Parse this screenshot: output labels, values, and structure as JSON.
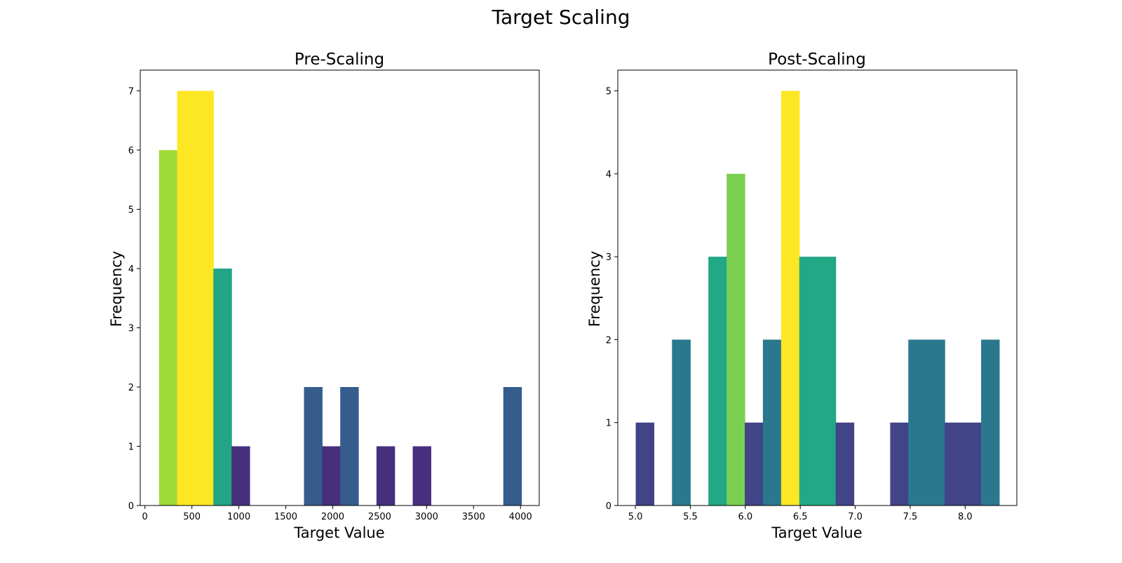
{
  "figure": {
    "title": "Target Scaling"
  },
  "chart_data": [
    {
      "type": "bar",
      "title": "Pre-Scaling",
      "xlabel": "Target Value",
      "ylabel": "Frequency",
      "xlim": [
        -50,
        4200
      ],
      "ylim": [
        0,
        7.35
      ],
      "xticks": [
        0,
        500,
        1000,
        1500,
        2000,
        2500,
        3000,
        3500,
        4000
      ],
      "yticks": [
        0,
        1,
        2,
        3,
        4,
        5,
        6,
        7
      ],
      "grid": false,
      "bins": [
        {
          "x0": 150,
          "x1": 343,
          "count": 6,
          "color": "#a0da39"
        },
        {
          "x0": 343,
          "x1": 536,
          "count": 7,
          "color": "#fde725"
        },
        {
          "x0": 536,
          "x1": 729,
          "count": 7,
          "color": "#fde725"
        },
        {
          "x0": 729,
          "x1": 922,
          "count": 4,
          "color": "#21a585"
        },
        {
          "x0": 922,
          "x1": 1115,
          "count": 1,
          "color": "#472f7d"
        },
        {
          "x0": 1115,
          "x1": 1308,
          "count": 0,
          "color": "#440154"
        },
        {
          "x0": 1308,
          "x1": 1501,
          "count": 0,
          "color": "#440154"
        },
        {
          "x0": 1501,
          "x1": 1694,
          "count": 0,
          "color": "#440154"
        },
        {
          "x0": 1694,
          "x1": 1887,
          "count": 2,
          "color": "#365c8d"
        },
        {
          "x0": 1887,
          "x1": 2080,
          "count": 1,
          "color": "#472f7d"
        },
        {
          "x0": 2080,
          "x1": 2273,
          "count": 2,
          "color": "#365c8d"
        },
        {
          "x0": 2273,
          "x1": 2466,
          "count": 0,
          "color": "#440154"
        },
        {
          "x0": 2466,
          "x1": 2659,
          "count": 1,
          "color": "#472f7d"
        },
        {
          "x0": 2659,
          "x1": 2852,
          "count": 0,
          "color": "#440154"
        },
        {
          "x0": 2852,
          "x1": 3045,
          "count": 1,
          "color": "#472f7d"
        },
        {
          "x0": 3045,
          "x1": 3238,
          "count": 0,
          "color": "#440154"
        },
        {
          "x0": 3238,
          "x1": 3431,
          "count": 0,
          "color": "#440154"
        },
        {
          "x0": 3431,
          "x1": 3624,
          "count": 0,
          "color": "#440154"
        },
        {
          "x0": 3624,
          "x1": 3817,
          "count": 0,
          "color": "#440154"
        },
        {
          "x0": 3817,
          "x1": 4010,
          "count": 2,
          "color": "#365c8d"
        }
      ]
    },
    {
      "type": "bar",
      "title": "Post-Scaling",
      "xlabel": "Target Value",
      "ylabel": "Frequency",
      "xlim": [
        4.84,
        8.47
      ],
      "ylim": [
        0,
        5.25
      ],
      "xticks": [
        "5.0",
        "5.5",
        "6.0",
        "6.5",
        "7.0",
        "7.5",
        "8.0"
      ],
      "yticks": [
        0,
        1,
        2,
        3,
        4,
        5
      ],
      "grid": false,
      "bins": [
        {
          "x0": 5.003,
          "x1": 5.168,
          "count": 1,
          "color": "#414487"
        },
        {
          "x0": 5.168,
          "x1": 5.333,
          "count": 0,
          "color": "#440154"
        },
        {
          "x0": 5.333,
          "x1": 5.499,
          "count": 2,
          "color": "#2a788e"
        },
        {
          "x0": 5.499,
          "x1": 5.664,
          "count": 0,
          "color": "#440154"
        },
        {
          "x0": 5.664,
          "x1": 5.83,
          "count": 3,
          "color": "#22a884"
        },
        {
          "x0": 5.83,
          "x1": 5.995,
          "count": 4,
          "color": "#7ad151"
        },
        {
          "x0": 5.995,
          "x1": 6.16,
          "count": 1,
          "color": "#414487"
        },
        {
          "x0": 6.16,
          "x1": 6.326,
          "count": 2,
          "color": "#2a788e"
        },
        {
          "x0": 6.326,
          "x1": 6.491,
          "count": 5,
          "color": "#fde725"
        },
        {
          "x0": 6.491,
          "x1": 6.656,
          "count": 3,
          "color": "#22a884"
        },
        {
          "x0": 6.656,
          "x1": 6.822,
          "count": 3,
          "color": "#22a884"
        },
        {
          "x0": 6.822,
          "x1": 6.987,
          "count": 1,
          "color": "#414487"
        },
        {
          "x0": 6.987,
          "x1": 7.153,
          "count": 0,
          "color": "#440154"
        },
        {
          "x0": 7.153,
          "x1": 7.318,
          "count": 0,
          "color": "#440154"
        },
        {
          "x0": 7.318,
          "x1": 7.483,
          "count": 1,
          "color": "#414487"
        },
        {
          "x0": 7.483,
          "x1": 7.649,
          "count": 2,
          "color": "#2a788e"
        },
        {
          "x0": 7.649,
          "x1": 7.814,
          "count": 2,
          "color": "#2a788e"
        },
        {
          "x0": 7.814,
          "x1": 7.979,
          "count": 1,
          "color": "#414487"
        },
        {
          "x0": 7.979,
          "x1": 8.145,
          "count": 1,
          "color": "#414487"
        },
        {
          "x0": 8.145,
          "x1": 8.31,
          "count": 2,
          "color": "#2a788e"
        }
      ]
    }
  ]
}
